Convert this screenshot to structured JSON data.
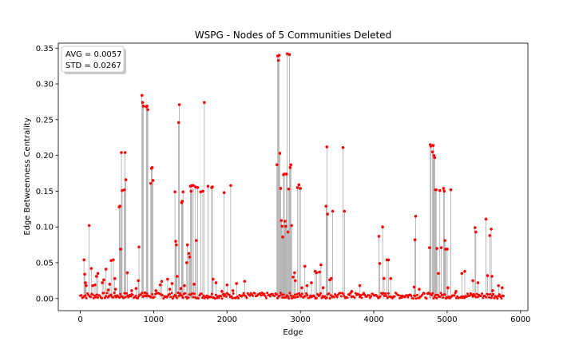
{
  "chart_data": {
    "type": "scatter",
    "title": "WSPG - Nodes of 5 Communities Deleted",
    "xlabel": "Edge",
    "ylabel": "Edge Betweenness Centrality",
    "xlim": [
      -300,
      6100
    ],
    "ylim": [
      -0.017,
      0.357
    ],
    "xticks": [
      0,
      1000,
      2000,
      3000,
      4000,
      5000,
      6000
    ],
    "xtick_labels": [
      "0",
      "1000",
      "2000",
      "3000",
      "4000",
      "5000",
      "6000"
    ],
    "yticks": [
      0.0,
      0.05,
      0.1,
      0.15,
      0.2,
      0.25,
      0.3,
      0.35
    ],
    "ytick_labels": [
      "0.00",
      "0.05",
      "0.10",
      "0.15",
      "0.20",
      "0.25",
      "0.30",
      "0.35"
    ],
    "grid": false,
    "stem_lines": true,
    "marker_color": "#ff0000",
    "stem_color": "#9e9e9e",
    "annotation_box": {
      "avg_label": "AVG = 0.0057",
      "std_label": "STD = 0.0267",
      "placement": "top-left"
    },
    "baseline": {
      "x_range": [
        0,
        5780
      ],
      "y_range": [
        0.0,
        0.008
      ]
    },
    "points": [
      [
        50,
        0.054
      ],
      [
        60,
        0.034
      ],
      [
        70,
        0.022
      ],
      [
        80,
        0.018
      ],
      [
        120,
        0.102
      ],
      [
        150,
        0.042
      ],
      [
        170,
        0.018
      ],
      [
        200,
        0.019
      ],
      [
        220,
        0.031
      ],
      [
        240,
        0.035
      ],
      [
        300,
        0.022
      ],
      [
        320,
        0.026
      ],
      [
        350,
        0.041
      ],
      [
        380,
        0.012
      ],
      [
        400,
        0.02
      ],
      [
        420,
        0.053
      ],
      [
        450,
        0.054
      ],
      [
        470,
        0.028
      ],
      [
        480,
        0.013
      ],
      [
        530,
        0.128
      ],
      [
        540,
        0.129
      ],
      [
        550,
        0.069
      ],
      [
        560,
        0.204
      ],
      [
        570,
        0.151
      ],
      [
        600,
        0.152
      ],
      [
        610,
        0.204
      ],
      [
        620,
        0.166
      ],
      [
        640,
        0.036
      ],
      [
        700,
        0.011
      ],
      [
        760,
        0.014
      ],
      [
        790,
        0.025
      ],
      [
        800,
        0.072
      ],
      [
        840,
        0.284
      ],
      [
        850,
        0.274
      ],
      [
        860,
        0.269
      ],
      [
        880,
        0.008
      ],
      [
        900,
        0.268
      ],
      [
        910,
        0.269
      ],
      [
        920,
        0.264
      ],
      [
        960,
        0.161
      ],
      [
        970,
        0.182
      ],
      [
        980,
        0.183
      ],
      [
        990,
        0.165
      ],
      [
        1030,
        0.011
      ],
      [
        1090,
        0.019
      ],
      [
        1110,
        0.024
      ],
      [
        1190,
        0.027
      ],
      [
        1220,
        0.013
      ],
      [
        1250,
        0.021
      ],
      [
        1290,
        0.149
      ],
      [
        1300,
        0.08
      ],
      [
        1310,
        0.075
      ],
      [
        1320,
        0.031
      ],
      [
        1340,
        0.246
      ],
      [
        1350,
        0.271
      ],
      [
        1370,
        0.014
      ],
      [
        1380,
        0.134
      ],
      [
        1390,
        0.136
      ],
      [
        1400,
        0.149
      ],
      [
        1420,
        0.018
      ],
      [
        1450,
        0.05
      ],
      [
        1460,
        0.075
      ],
      [
        1480,
        0.063
      ],
      [
        1490,
        0.058
      ],
      [
        1500,
        0.157
      ],
      [
        1510,
        0.15
      ],
      [
        1520,
        0.158
      ],
      [
        1540,
        0.158
      ],
      [
        1550,
        0.02
      ],
      [
        1570,
        0.156
      ],
      [
        1580,
        0.081
      ],
      [
        1600,
        0.155
      ],
      [
        1640,
        0.149
      ],
      [
        1670,
        0.15
      ],
      [
        1690,
        0.274
      ],
      [
        1740,
        0.157
      ],
      [
        1790,
        0.155
      ],
      [
        1800,
        0.156
      ],
      [
        1810,
        0.027
      ],
      [
        1850,
        0.022
      ],
      [
        1930,
        0.01
      ],
      [
        1960,
        0.148
      ],
      [
        2000,
        0.019
      ],
      [
        2050,
        0.158
      ],
      [
        2080,
        0.011
      ],
      [
        2130,
        0.021
      ],
      [
        2240,
        0.024
      ],
      [
        2680,
        0.187
      ],
      [
        2690,
        0.339
      ],
      [
        2700,
        0.333
      ],
      [
        2710,
        0.34
      ],
      [
        2720,
        0.203
      ],
      [
        2730,
        0.154
      ],
      [
        2740,
        0.109
      ],
      [
        2750,
        0.101
      ],
      [
        2760,
        0.086
      ],
      [
        2770,
        0.173
      ],
      [
        2780,
        0.174
      ],
      [
        2790,
        0.108
      ],
      [
        2800,
        0.101
      ],
      [
        2810,
        0.174
      ],
      [
        2820,
        0.342
      ],
      [
        2830,
        0.093
      ],
      [
        2840,
        0.153
      ],
      [
        2850,
        0.341
      ],
      [
        2860,
        0.183
      ],
      [
        2870,
        0.187
      ],
      [
        2880,
        0.102
      ],
      [
        2900,
        0.03
      ],
      [
        2920,
        0.036
      ],
      [
        2930,
        0.025
      ],
      [
        2960,
        0.155
      ],
      [
        2980,
        0.159
      ],
      [
        3000,
        0.154
      ],
      [
        3020,
        0.015
      ],
      [
        3060,
        0.045
      ],
      [
        3090,
        0.018
      ],
      [
        3150,
        0.022
      ],
      [
        3200,
        0.038
      ],
      [
        3220,
        0.036
      ],
      [
        3260,
        0.037
      ],
      [
        3280,
        0.047
      ],
      [
        3310,
        0.015
      ],
      [
        3350,
        0.129
      ],
      [
        3360,
        0.212
      ],
      [
        3370,
        0.118
      ],
      [
        3400,
        0.026
      ],
      [
        3420,
        0.028
      ],
      [
        3440,
        0.122
      ],
      [
        3580,
        0.211
      ],
      [
        3600,
        0.122
      ],
      [
        3700,
        0.01
      ],
      [
        3810,
        0.018
      ],
      [
        4070,
        0.087
      ],
      [
        4080,
        0.049
      ],
      [
        4120,
        0.1
      ],
      [
        4140,
        0.028
      ],
      [
        4180,
        0.054
      ],
      [
        4200,
        0.054
      ],
      [
        4230,
        0.028
      ],
      [
        4550,
        0.016
      ],
      [
        4560,
        0.082
      ],
      [
        4570,
        0.115
      ],
      [
        4620,
        0.013
      ],
      [
        4760,
        0.071
      ],
      [
        4770,
        0.215
      ],
      [
        4780,
        0.213
      ],
      [
        4800,
        0.205
      ],
      [
        4810,
        0.214
      ],
      [
        4820,
        0.2
      ],
      [
        4830,
        0.197
      ],
      [
        4840,
        0.152
      ],
      [
        4850,
        0.152
      ],
      [
        4860,
        0.07
      ],
      [
        4880,
        0.035
      ],
      [
        4900,
        0.151
      ],
      [
        4920,
        0.071
      ],
      [
        4950,
        0.154
      ],
      [
        4960,
        0.15
      ],
      [
        4970,
        0.081
      ],
      [
        4980,
        0.069
      ],
      [
        5000,
        0.069
      ],
      [
        5010,
        0.015
      ],
      [
        5050,
        0.152
      ],
      [
        5120,
        0.01
      ],
      [
        5200,
        0.035
      ],
      [
        5240,
        0.038
      ],
      [
        5350,
        0.025
      ],
      [
        5380,
        0.099
      ],
      [
        5390,
        0.093
      ],
      [
        5420,
        0.022
      ],
      [
        5530,
        0.111
      ],
      [
        5550,
        0.032
      ],
      [
        5580,
        0.088
      ],
      [
        5600,
        0.097
      ],
      [
        5610,
        0.031
      ],
      [
        5620,
        0.011
      ],
      [
        5700,
        0.018
      ],
      [
        5750,
        0.015
      ]
    ]
  }
}
